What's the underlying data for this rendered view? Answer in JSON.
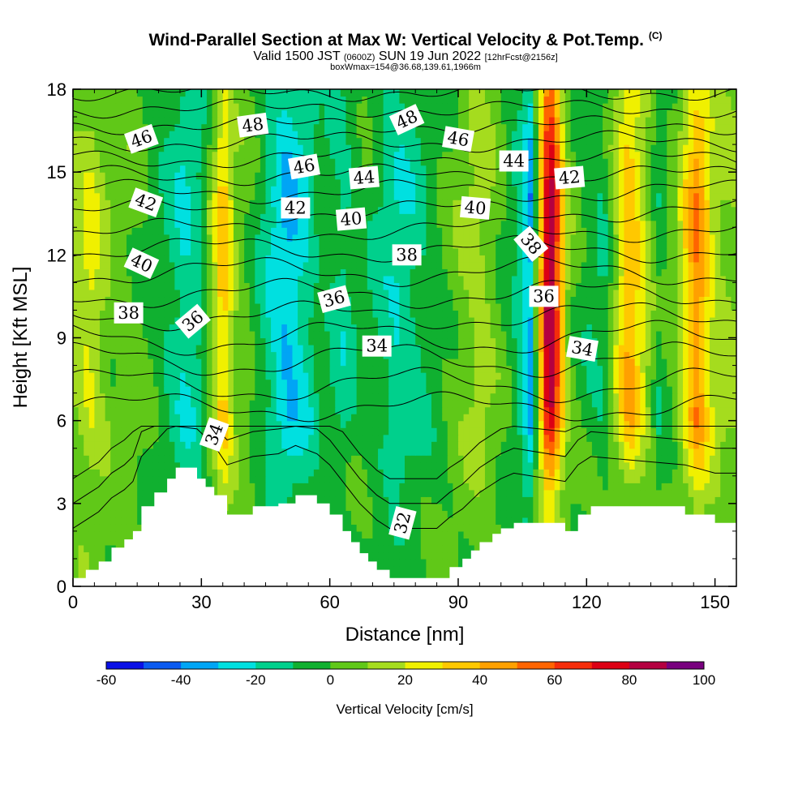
{
  "title": {
    "main": "Wind-Parallel Section at Max W: Vertical Velocity & Pot.Temp.",
    "copyright": "(C)",
    "valid_a": "Valid 1500 JST",
    "valid_utc": "(0600Z)",
    "valid_b": "SUN 19 Jun 2022",
    "fcst": "[12hrFcst@2156z]",
    "box": "boxWmax=154@36.68,139.61,1966m"
  },
  "chart_data": {
    "type": "heatmap",
    "xlabel": "Distance [nm]",
    "ylabel": "Height [Kft MSL]",
    "xlim": [
      0,
      155
    ],
    "ylim": [
      0,
      18
    ],
    "xticks": [
      "0",
      "30",
      "60",
      "90",
      "120",
      "150"
    ],
    "yticks": [
      "0",
      "3",
      "6",
      "9",
      "12",
      "15",
      "18"
    ],
    "colorbar": {
      "label": "Vertical Velocity [cm/s]",
      "ticks": [
        "-60",
        "-40",
        "-20",
        "0",
        "20",
        "40",
        "60",
        "80",
        "100"
      ],
      "levels": [
        -60,
        -50,
        -40,
        -30,
        -20,
        -10,
        0,
        10,
        20,
        30,
        40,
        50,
        60,
        70,
        80,
        90,
        100
      ],
      "colors": [
        "#0a10e6",
        "#0a5af0",
        "#00a5f5",
        "#00e0e0",
        "#00d08c",
        "#10b030",
        "#60c818",
        "#a5dc1e",
        "#f0f000",
        "#ffc800",
        "#ffa000",
        "#ff6400",
        "#f52d0a",
        "#dc0014",
        "#b40040",
        "#78007e"
      ]
    },
    "wstops": [
      {
        "x": 0,
        "v": 12
      },
      {
        "x": 4,
        "v": 22
      },
      {
        "x": 9,
        "v": 6
      },
      {
        "x": 15,
        "v": 3
      },
      {
        "x": 21,
        "v": -8
      },
      {
        "x": 26,
        "v": -20
      },
      {
        "x": 30,
        "v": -12
      },
      {
        "x": 33,
        "v": 15
      },
      {
        "x": 35,
        "v": 38
      },
      {
        "x": 38,
        "v": 10
      },
      {
        "x": 42,
        "v": -2
      },
      {
        "x": 46,
        "v": -18
      },
      {
        "x": 50,
        "v": -32
      },
      {
        "x": 54,
        "v": -22
      },
      {
        "x": 58,
        "v": -5
      },
      {
        "x": 63,
        "v": -14
      },
      {
        "x": 68,
        "v": -4
      },
      {
        "x": 72,
        "v": -12
      },
      {
        "x": 76,
        "v": -20
      },
      {
        "x": 80,
        "v": -14
      },
      {
        "x": 84,
        "v": -5
      },
      {
        "x": 89,
        "v": 4
      },
      {
        "x": 95,
        "v": 15
      },
      {
        "x": 100,
        "v": 2
      },
      {
        "x": 104,
        "v": -12
      },
      {
        "x": 107,
        "v": -35
      },
      {
        "x": 109,
        "v": 25
      },
      {
        "x": 110.5,
        "v": 75
      },
      {
        "x": 112,
        "v": 85
      },
      {
        "x": 114,
        "v": 40
      },
      {
        "x": 116,
        "v": 6
      },
      {
        "x": 120,
        "v": -6
      },
      {
        "x": 124,
        "v": -10
      },
      {
        "x": 128,
        "v": 25
      },
      {
        "x": 130,
        "v": 42
      },
      {
        "x": 133,
        "v": 22
      },
      {
        "x": 137,
        "v": -6
      },
      {
        "x": 141,
        "v": 8
      },
      {
        "x": 144,
        "v": 35
      },
      {
        "x": 146,
        "v": 50
      },
      {
        "x": 149,
        "v": 22
      },
      {
        "x": 152,
        "v": 12
      },
      {
        "x": 155,
        "v": 10
      }
    ],
    "terrain": [
      {
        "x": 0,
        "y": 0.3
      },
      {
        "x": 3,
        "y": 0.6
      },
      {
        "x": 6,
        "y": 0.9
      },
      {
        "x": 9,
        "y": 1.4
      },
      {
        "x": 12,
        "y": 1.7
      },
      {
        "x": 14,
        "y": 2.0
      },
      {
        "x": 16,
        "y": 2.9
      },
      {
        "x": 19,
        "y": 3.4
      },
      {
        "x": 22,
        "y": 3.9
      },
      {
        "x": 24,
        "y": 4.3
      },
      {
        "x": 29,
        "y": 3.9
      },
      {
        "x": 31,
        "y": 3.6
      },
      {
        "x": 33,
        "y": 3.3
      },
      {
        "x": 36,
        "y": 2.6
      },
      {
        "x": 42,
        "y": 2.9
      },
      {
        "x": 48,
        "y": 3.0
      },
      {
        "x": 52,
        "y": 3.3
      },
      {
        "x": 57,
        "y": 3.0
      },
      {
        "x": 60,
        "y": 2.6
      },
      {
        "x": 63,
        "y": 2.0
      },
      {
        "x": 65,
        "y": 1.6
      },
      {
        "x": 67,
        "y": 1.2
      },
      {
        "x": 69,
        "y": 0.9
      },
      {
        "x": 71,
        "y": 0.6
      },
      {
        "x": 74,
        "y": 0.3
      },
      {
        "x": 85,
        "y": 0.3
      },
      {
        "x": 88,
        "y": 0.7
      },
      {
        "x": 91,
        "y": 1.0
      },
      {
        "x": 93,
        "y": 1.3
      },
      {
        "x": 95,
        "y": 1.6
      },
      {
        "x": 98,
        "y": 1.9
      },
      {
        "x": 100,
        "y": 2.1
      },
      {
        "x": 103,
        "y": 2.3
      },
      {
        "x": 115,
        "y": 2.0
      },
      {
        "x": 118,
        "y": 2.6
      },
      {
        "x": 121,
        "y": 2.9
      },
      {
        "x": 143,
        "y": 2.6
      },
      {
        "x": 150,
        "y": 2.3
      },
      {
        "x": 155,
        "y": 2.3
      }
    ],
    "isentropes": [
      {
        "base": 6.5,
        "amp": 0.4
      },
      {
        "base": 7.3,
        "amp": 0.5
      },
      {
        "base": 8.2,
        "amp": 0.5
      },
      {
        "base": 9.0,
        "amp": 0.5,
        "label": "34"
      },
      {
        "base": 9.8,
        "amp": 0.4
      },
      {
        "base": 10.6,
        "amp": 0.4
      },
      {
        "base": 11.4,
        "amp": 0.4,
        "label": "36"
      },
      {
        "base": 12.2,
        "amp": 0.35
      },
      {
        "base": 12.9,
        "amp": 0.3,
        "label": "38"
      },
      {
        "base": 13.6,
        "amp": 0.3
      },
      {
        "base": 14.3,
        "amp": 0.3,
        "label": "40"
      },
      {
        "base": 14.9,
        "amp": 0.25
      },
      {
        "base": 15.5,
        "amp": 0.25,
        "label": "42"
      },
      {
        "base": 16.1,
        "amp": 0.25
      },
      {
        "base": 16.7,
        "amp": 0.2,
        "label": "44"
      },
      {
        "base": 17.3,
        "amp": 0.2
      },
      {
        "base": 17.9,
        "amp": 0.2,
        "label": "46"
      }
    ],
    "contour_labels": [
      {
        "text": "46",
        "x": 16,
        "y": 16.2,
        "rot": -20
      },
      {
        "text": "48",
        "x": 42,
        "y": 16.7,
        "rot": -8
      },
      {
        "text": "48",
        "x": 78,
        "y": 16.9,
        "rot": -25
      },
      {
        "text": "46",
        "x": 90,
        "y": 16.2,
        "rot": 10
      },
      {
        "text": "44",
        "x": 103,
        "y": 15.4,
        "rot": 0
      },
      {
        "text": "42",
        "x": 116,
        "y": 14.8,
        "rot": -5
      },
      {
        "text": "46",
        "x": 54,
        "y": 15.2,
        "rot": -10
      },
      {
        "text": "44",
        "x": 68,
        "y": 14.8,
        "rot": -5
      },
      {
        "text": "42",
        "x": 17,
        "y": 13.9,
        "rot": 20
      },
      {
        "text": "42",
        "x": 52,
        "y": 13.7,
        "rot": 0
      },
      {
        "text": "40",
        "x": 65,
        "y": 13.3,
        "rot": -5
      },
      {
        "text": "40",
        "x": 94,
        "y": 13.7,
        "rot": 5
      },
      {
        "text": "38",
        "x": 107,
        "y": 12.4,
        "rot": 50
      },
      {
        "text": "40",
        "x": 16,
        "y": 11.7,
        "rot": 25
      },
      {
        "text": "38",
        "x": 78,
        "y": 12.0,
        "rot": 0
      },
      {
        "text": "36",
        "x": 61,
        "y": 10.4,
        "rot": -15
      },
      {
        "text": "36",
        "x": 110,
        "y": 10.5,
        "rot": 0
      },
      {
        "text": "38",
        "x": 13,
        "y": 9.9,
        "rot": 0
      },
      {
        "text": "36",
        "x": 28,
        "y": 9.6,
        "rot": -40
      },
      {
        "text": "34",
        "x": 71,
        "y": 8.7,
        "rot": 0
      },
      {
        "text": "34",
        "x": 119,
        "y": 8.6,
        "rot": 10
      },
      {
        "text": "34",
        "x": 33,
        "y": 5.5,
        "rot": -70
      },
      {
        "text": "32",
        "x": 77,
        "y": 2.3,
        "rot": -75
      }
    ]
  }
}
